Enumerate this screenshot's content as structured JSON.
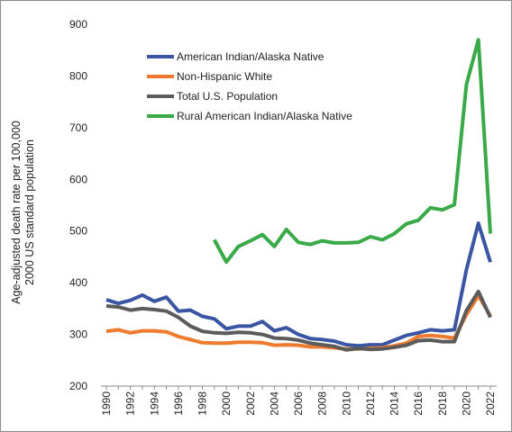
{
  "chart_data": {
    "type": "line",
    "title": "",
    "ylabel_line1": "Age-adjusted death rate per 100,000",
    "ylabel_line2": "2000 US standard population",
    "xlabel": "",
    "ylim": [
      200,
      900
    ],
    "yticks": [
      200,
      300,
      400,
      500,
      600,
      700,
      800,
      900
    ],
    "xlim": [
      1990,
      2022
    ],
    "xticks": [
      1990,
      1992,
      1994,
      1996,
      1998,
      2000,
      2002,
      2004,
      2006,
      2008,
      2010,
      2012,
      2014,
      2016,
      2018,
      2020,
      2022
    ],
    "grid": false,
    "legend_position": "top-left",
    "series": [
      {
        "name": "American Indian/Alaska Native",
        "color": "#3a55a4",
        "x": [
          1990,
          1991,
          1992,
          1993,
          1994,
          1995,
          1996,
          1997,
          1998,
          1999,
          2000,
          2001,
          2002,
          2003,
          2004,
          2005,
          2006,
          2007,
          2008,
          2009,
          2010,
          2011,
          2012,
          2013,
          2014,
          2015,
          2016,
          2017,
          2018,
          2019,
          2020,
          2021,
          2022
        ],
        "values": [
          367,
          360,
          366,
          376,
          364,
          372,
          345,
          347,
          335,
          330,
          311,
          316,
          316,
          325,
          307,
          313,
          300,
          292,
          290,
          287,
          280,
          278,
          280,
          280,
          289,
          298,
          303,
          309,
          307,
          309,
          425,
          515,
          440
        ]
      },
      {
        "name": "Non-Hispanic White",
        "color": "#ee7a2d",
        "x": [
          1990,
          1991,
          1992,
          1993,
          1994,
          1995,
          1996,
          1997,
          1998,
          1999,
          2000,
          2001,
          2002,
          2003,
          2004,
          2005,
          2006,
          2007,
          2008,
          2009,
          2010,
          2011,
          2012,
          2013,
          2014,
          2015,
          2016,
          2017,
          2018,
          2019,
          2020,
          2021,
          2022
        ],
        "values": [
          306,
          309,
          303,
          307,
          307,
          305,
          296,
          290,
          284,
          283,
          283,
          285,
          285,
          284,
          279,
          280,
          279,
          276,
          276,
          274,
          272,
          272,
          273,
          274,
          278,
          283,
          296,
          298,
          296,
          293,
          338,
          375,
          336
        ]
      },
      {
        "name": "Total U.S. Population",
        "color": "#5b5b5b",
        "x": [
          1990,
          1991,
          1992,
          1993,
          1994,
          1995,
          1996,
          1997,
          1998,
          1999,
          2000,
          2001,
          2002,
          2003,
          2004,
          2005,
          2006,
          2007,
          2008,
          2009,
          2010,
          2011,
          2012,
          2013,
          2014,
          2015,
          2016,
          2017,
          2018,
          2019,
          2020,
          2021,
          2022
        ],
        "values": [
          355,
          353,
          347,
          350,
          348,
          345,
          333,
          316,
          306,
          303,
          302,
          304,
          303,
          300,
          293,
          292,
          289,
          283,
          280,
          277,
          270,
          273,
          271,
          272,
          275,
          279,
          288,
          289,
          286,
          286,
          346,
          383,
          333
        ]
      },
      {
        "name": "Rural American Indian/Alaska Native",
        "color": "#3aa947",
        "x": [
          1999,
          2000,
          2001,
          2002,
          2003,
          2004,
          2005,
          2006,
          2007,
          2008,
          2009,
          2010,
          2011,
          2012,
          2013,
          2014,
          2015,
          2016,
          2017,
          2018,
          2019,
          2020,
          2021,
          2022
        ],
        "values": [
          483,
          440,
          470,
          481,
          493,
          470,
          503,
          478,
          474,
          481,
          477,
          477,
          478,
          489,
          483,
          495,
          514,
          521,
          545,
          541,
          551,
          783,
          870,
          495
        ]
      }
    ]
  }
}
